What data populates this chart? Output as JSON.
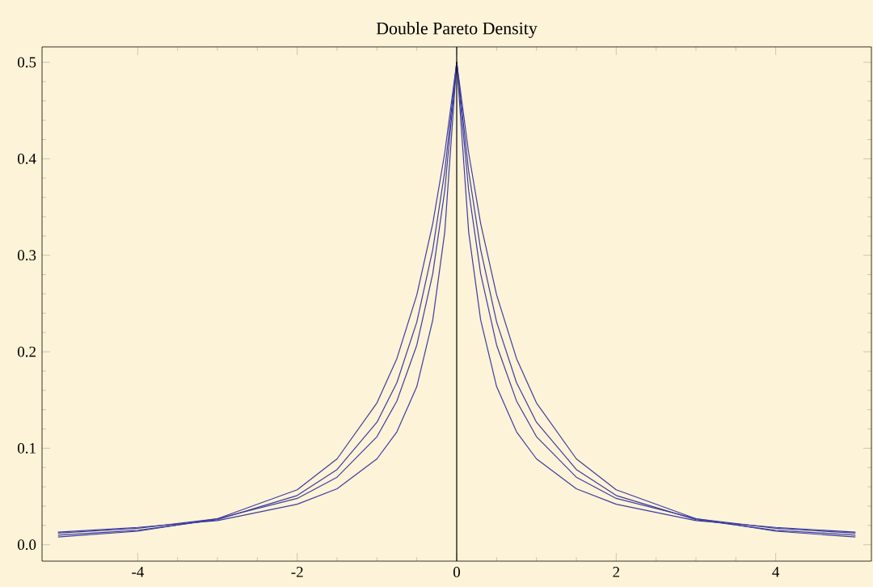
{
  "chart_data": {
    "type": "line",
    "title": "Double Pareto Density",
    "x": [
      -5,
      -4,
      -3,
      -2,
      -1.5,
      -1,
      -0.75,
      -0.5,
      -0.3,
      -0.15,
      0,
      0.15,
      0.3,
      0.5,
      0.75,
      1,
      1.5,
      2,
      3,
      4,
      5
    ],
    "series": [
      {
        "color": "#3c3c9e",
        "values": [
          0.013,
          0.018,
          0.025,
          0.042,
          0.058,
          0.089,
          0.117,
          0.164,
          0.233,
          0.324,
          0.5,
          0.324,
          0.233,
          0.164,
          0.117,
          0.089,
          0.058,
          0.042,
          0.025,
          0.018,
          0.013
        ]
      },
      {
        "color": "#3c3c9e",
        "values": [
          0.012,
          0.017,
          0.027,
          0.048,
          0.07,
          0.112,
          0.149,
          0.207,
          0.281,
          0.367,
          0.5,
          0.367,
          0.281,
          0.207,
          0.149,
          0.112,
          0.07,
          0.048,
          0.027,
          0.017,
          0.012
        ]
      },
      {
        "color": "#3c3c9e",
        "values": [
          0.01,
          0.015,
          0.026,
          0.051,
          0.078,
          0.127,
          0.168,
          0.231,
          0.306,
          0.387,
          0.5,
          0.387,
          0.306,
          0.231,
          0.168,
          0.127,
          0.078,
          0.051,
          0.026,
          0.015,
          0.01
        ]
      },
      {
        "color": "#3c3c9e",
        "values": [
          0.008,
          0.014,
          0.027,
          0.057,
          0.089,
          0.147,
          0.193,
          0.259,
          0.333,
          0.406,
          0.5,
          0.406,
          0.333,
          0.259,
          0.193,
          0.147,
          0.089,
          0.057,
          0.027,
          0.014,
          0.008
        ]
      }
    ],
    "xlim": [
      -5.2,
      5.2
    ],
    "ylim": [
      -0.017,
      0.516
    ],
    "xticks": [
      -4,
      -2,
      0,
      2,
      4
    ],
    "yticks": [
      {
        "value": 0,
        "label": "0.0"
      },
      0.1,
      0.2,
      0.3,
      0.4,
      0.5
    ],
    "ref_lines": [
      {
        "axis": "x",
        "value": 0,
        "color": "#000000"
      }
    ],
    "grid": false,
    "marker": "none",
    "line_style": "solid"
  }
}
